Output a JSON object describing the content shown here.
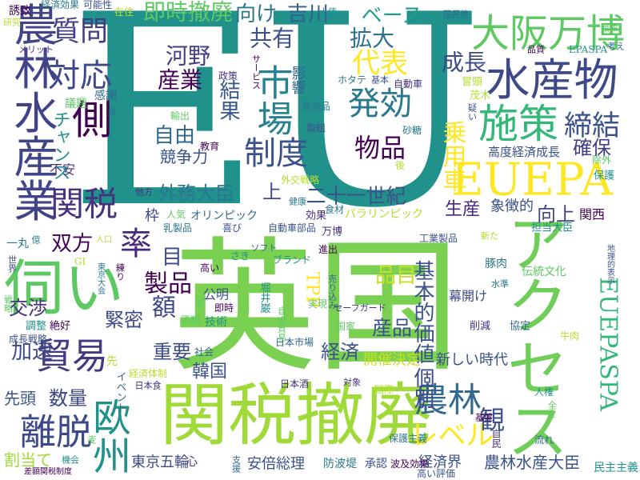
{
  "words": [
    "EU",
    "英国",
    "関税撤廃",
    "農林水産業",
    "伺い",
    "アクセス",
    "EUEPA",
    "水産物",
    "大阪万博",
    "施策",
    "市場",
    "発効",
    "制度",
    "側",
    "対応",
    "関税",
    "率",
    "貿易",
    "離脱",
    "欧州",
    "農林",
    "代表",
    "質問",
    "締結",
    "物品",
    "乗用車",
    "成長",
    "外務大臣",
    "二十一世紀",
    "共有",
    "吉川",
    "向け",
    "拡大",
    "ベース",
    "即時撤廃",
    "河野",
    "産業",
    "結果",
    "自由",
    "競争力",
    "確保",
    "高度経済成長",
    "向上",
    "生産",
    "象徴的",
    "上",
    "製品",
    "額",
    "緊密",
    "双方",
    "目",
    "交渉",
    "加速",
    "重要",
    "韓国",
    "経済",
    "産品",
    "品目",
    "基本的価値",
    "個別",
    "レベル",
    "観",
    "EUEPASPA",
    "農林水産大臣",
    "経済界",
    "数量",
    "先頭",
    "割当て",
    "東京五輪",
    "安倍総理",
    "新しい時代",
    "開催決定",
    "幕開け",
    "TPP",
    "枠",
    "人気",
    "オリンピック",
    "効果",
    "パラリンピック",
    "食材",
    "工業製品",
    "関西",
    "担当大臣",
    "伝統文化",
    "協定",
    "削減",
    "牛肉",
    "豚肉",
    "公明",
    "即時",
    "技術",
    "酒類",
    "日本市場",
    "日本酒",
    "経済体制",
    "防波堤",
    "承認",
    "波及効果",
    "民主主義",
    "国家",
    "社会",
    "心",
    "在住",
    "経済効果",
    "可能性",
    "誘致",
    "チャンス",
    "議題",
    "感謝",
    "不安",
    "外交戦略",
    "健康",
    "自動車部品",
    "進出",
    "ブランド",
    "実現",
    "国民性",
    "自動車",
    "冒頭",
    "農産品",
    "取組",
    "教育",
    "保護",
    "除外",
    "影響",
    "政策",
    "茂木",
    "保護主義",
    "高い評価",
    "基盤",
    "人権",
    "全て",
    "流れ",
    "自民",
    "国際",
    "一丸",
    "成長戦略",
    "絶好",
    "調整",
    "戦略",
    "イベント",
    "日本食",
    "先",
    "乳製品",
    "喜び",
    "高い",
    "さき",
    "茶",
    "ソフト",
    "万博",
    "新た",
    "ホタテ",
    "基本",
    "サービス",
    "土俵",
    "輸出",
    "点",
    "他方",
    "後",
    "砂糖",
    "疑い",
    "品質",
    "EPASPA",
    "措置",
    "考え",
    "メリット",
    "研究",
    "水準",
    "地理的表示",
    "差額関税制度",
    "機会",
    "麦",
    "支援",
    "対象",
    "人口",
    "億",
    "世界",
    "練り",
    "堀井巌",
    "自由貿易",
    "売り込み",
    "セーフガード",
    "GI",
    "東京大会"
  ]
}
